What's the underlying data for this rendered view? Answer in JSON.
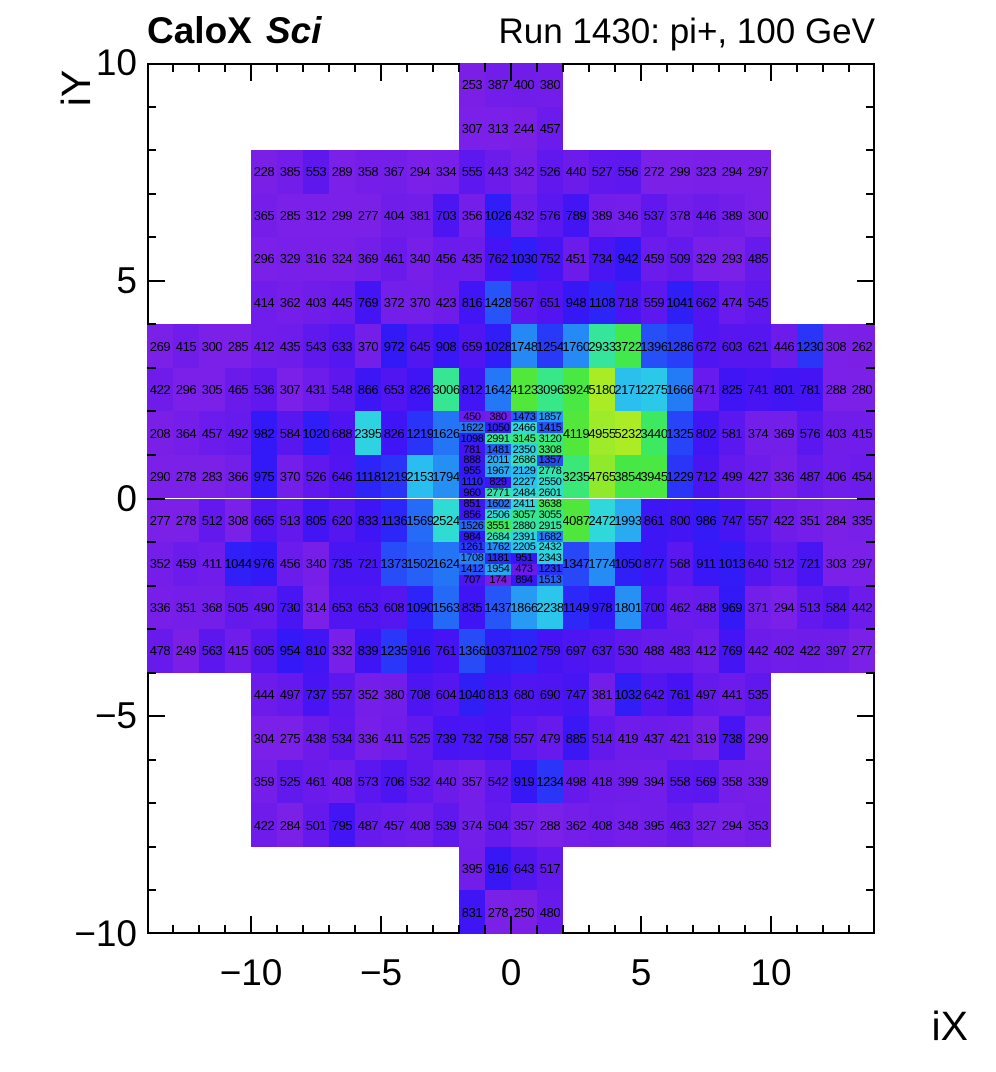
{
  "header": {
    "left_title_bold": "CaloX",
    "left_title_italic": "Sci",
    "right_title": "Run 1430: pi+, 100 GeV"
  },
  "axes": {
    "x": {
      "title": "iX",
      "tick_labels": [
        {
          "value": -10,
          "label": "−10"
        },
        {
          "value": -5,
          "label": "−5"
        },
        {
          "value": 0,
          "label": "0"
        },
        {
          "value": 5,
          "label": "5"
        },
        {
          "value": 10,
          "label": "10"
        }
      ]
    },
    "y": {
      "title": "iY",
      "tick_labels": [
        {
          "value": 10,
          "label": "10"
        },
        {
          "value": 5,
          "label": "5"
        },
        {
          "value": 0,
          "label": "0"
        },
        {
          "value": -5,
          "label": "−5"
        },
        {
          "value": -10,
          "label": "−10"
        }
      ]
    }
  },
  "chart_data": {
    "type": "heatmap",
    "title": "CaloX Sci — Run 1430: pi+, 100 GeV",
    "xlabel": "iX",
    "ylabel": "iY",
    "x_range": [
      -14,
      14
    ],
    "y_range": [
      -10,
      10
    ],
    "z_min": 174,
    "z_max": 5232,
    "grid": false,
    "legend": "none",
    "palette_stops": [
      [
        174,
        "#7A1EE4"
      ],
      [
        300,
        "#7B20E8"
      ],
      [
        450,
        "#6C1BEB"
      ],
      [
        600,
        "#5716F0"
      ],
      [
        780,
        "#4414F4"
      ],
      [
        980,
        "#3319F7"
      ],
      [
        1150,
        "#2B28F8"
      ],
      [
        1400,
        "#2750F8"
      ],
      [
        1650,
        "#2478F6"
      ],
      [
        1900,
        "#27A0F3"
      ],
      [
        2200,
        "#2BC2EE"
      ],
      [
        2500,
        "#2FDBD8"
      ],
      [
        2800,
        "#34E3AC"
      ],
      [
        3100,
        "#38E787"
      ],
      [
        3450,
        "#3DE95F"
      ],
      [
        3800,
        "#44E847"
      ],
      [
        4150,
        "#52E73A"
      ],
      [
        4500,
        "#75E831"
      ],
      [
        4850,
        "#97EA2A"
      ],
      [
        5232,
        "#ACEC25"
      ]
    ],
    "rows": [
      {
        "y": 9.5,
        "h": 1,
        "x0": -1.5,
        "dx": 1,
        "values": [
          253,
          387,
          400,
          380
        ]
      },
      {
        "y": 8.5,
        "h": 1,
        "x0": -1.5,
        "dx": 1,
        "values": [
          307,
          313,
          244,
          457
        ]
      },
      {
        "y": 7.5,
        "h": 1,
        "x0": -9.5,
        "dx": 1,
        "values": [
          228,
          385,
          553,
          289,
          358,
          367,
          294,
          334,
          555,
          443,
          342,
          526,
          440,
          527,
          556,
          272,
          299,
          323,
          294,
          297
        ]
      },
      {
        "y": 6.5,
        "h": 1,
        "x0": -9.5,
        "dx": 1,
        "values": [
          365,
          285,
          312,
          299,
          277,
          404,
          381,
          703,
          356,
          1026,
          432,
          576,
          789,
          389,
          346,
          537,
          378,
          446,
          389,
          300
        ]
      },
      {
        "y": 5.5,
        "h": 1,
        "x0": -9.5,
        "dx": 1,
        "values": [
          296,
          329,
          316,
          324,
          369,
          461,
          340,
          456,
          435,
          762,
          1030,
          752,
          451,
          734,
          942,
          459,
          509,
          329,
          293,
          485
        ]
      },
      {
        "y": 4.5,
        "h": 1,
        "x0": -9.5,
        "dx": 1,
        "values": [
          414,
          362,
          403,
          445,
          769,
          372,
          370,
          423,
          816,
          1428,
          567,
          651,
          948,
          1108,
          718,
          559,
          1041,
          662,
          474,
          545
        ]
      },
      {
        "y": 3.5,
        "h": 1,
        "x0": -13.5,
        "dx": 1,
        "values": [
          269,
          415,
          300,
          285,
          412,
          435,
          543,
          633,
          370,
          972,
          645,
          908,
          659,
          1028,
          1748,
          1254,
          1760,
          2933,
          3722,
          1396,
          1286,
          672,
          603,
          621,
          446,
          1230,
          308,
          262
        ]
      },
      {
        "y": 2.5,
        "h": 1,
        "x0": -13.5,
        "dx": 1,
        "values": [
          422,
          296,
          305,
          465,
          536,
          307,
          431,
          548,
          866,
          653,
          826,
          3006,
          812,
          1642,
          4123,
          3096,
          3924,
          5180,
          2171,
          2275,
          1666,
          471,
          825,
          741,
          801,
          781,
          288,
          280
        ]
      },
      {
        "y": 1.5,
        "h": 1,
        "x0": -13.5,
        "dx": 1,
        "values": [
          208,
          364,
          457,
          492,
          982,
          584,
          1020,
          688,
          2395,
          826,
          1219,
          1626
        ]
      },
      {
        "y": 1.5,
        "h": 1,
        "x0": 2.5,
        "dx": 1,
        "values": [
          4119,
          4955,
          5232,
          3440,
          1325,
          802,
          581,
          374,
          369,
          576,
          403,
          415
        ]
      },
      {
        "y": 0.5,
        "h": 1,
        "x0": -13.5,
        "dx": 1,
        "values": [
          290,
          278,
          283,
          366,
          975,
          370,
          526,
          646,
          1118,
          1219,
          2153,
          1794
        ]
      },
      {
        "y": 0.5,
        "h": 1,
        "x0": 2.5,
        "dx": 1,
        "values": [
          3235,
          4765,
          3854,
          3945,
          1229,
          712,
          499,
          427,
          336,
          487,
          406,
          454
        ]
      },
      {
        "y": -0.5,
        "h": 1,
        "x0": -13.5,
        "dx": 1,
        "values": [
          277,
          278,
          512,
          308,
          665,
          513,
          805,
          620,
          833,
          1136,
          1569,
          2524
        ]
      },
      {
        "y": -0.5,
        "h": 1,
        "x0": 2.5,
        "dx": 1,
        "values": [
          4087,
          2472,
          1993,
          861,
          800,
          986,
          747,
          557,
          422,
          351,
          284,
          335
        ]
      },
      {
        "y": -1.5,
        "h": 1,
        "x0": -13.5,
        "dx": 1,
        "values": [
          352,
          459,
          411,
          1044,
          976,
          456,
          340,
          735,
          721,
          1373,
          1502,
          1624
        ]
      },
      {
        "y": -1.5,
        "h": 1,
        "x0": 2.5,
        "dx": 1,
        "values": [
          1347,
          1774,
          1050,
          877,
          568,
          911,
          1013,
          640,
          512,
          721,
          303,
          297
        ]
      },
      {
        "y": 1.875,
        "h": 0.25,
        "x0": -1.5,
        "dx": 1,
        "values": [
          450,
          380,
          1473,
          1857
        ]
      },
      {
        "y": 1.625,
        "h": 0.25,
        "x0": -1.5,
        "dx": 1,
        "values": [
          1622,
          1050,
          2466,
          1415
        ]
      },
      {
        "y": 1.375,
        "h": 0.25,
        "x0": -1.5,
        "dx": 1,
        "values": [
          1098,
          2991,
          3145,
          3120
        ]
      },
      {
        "y": 1.125,
        "h": 0.25,
        "x0": -1.5,
        "dx": 1,
        "values": [
          781,
          1481,
          2350,
          3308
        ]
      },
      {
        "y": 0.875,
        "h": 0.25,
        "x0": -1.5,
        "dx": 1,
        "values": [
          888,
          2011,
          2686,
          1357
        ]
      },
      {
        "y": 0.625,
        "h": 0.25,
        "x0": -1.5,
        "dx": 1,
        "values": [
          955,
          1967,
          2129,
          2778
        ]
      },
      {
        "y": 0.375,
        "h": 0.25,
        "x0": -1.5,
        "dx": 1,
        "values": [
          1110,
          829,
          2227,
          2550
        ]
      },
      {
        "y": 0.125,
        "h": 0.25,
        "x0": -1.5,
        "dx": 1,
        "values": [
          960,
          2771,
          2484,
          2601
        ]
      },
      {
        "y": -0.125,
        "h": 0.25,
        "x0": -1.5,
        "dx": 1,
        "values": [
          851,
          1602,
          2411,
          3638
        ]
      },
      {
        "y": -0.375,
        "h": 0.25,
        "x0": -1.5,
        "dx": 1,
        "values": [
          856,
          2506,
          3057,
          3055
        ]
      },
      {
        "y": -0.625,
        "h": 0.25,
        "x0": -1.5,
        "dx": 1,
        "values": [
          1526,
          3551,
          2880,
          2915
        ]
      },
      {
        "y": -0.875,
        "h": 0.25,
        "x0": -1.5,
        "dx": 1,
        "values": [
          984,
          2684,
          2391,
          1682
        ]
      },
      {
        "y": -1.125,
        "h": 0.25,
        "x0": -1.5,
        "dx": 1,
        "values": [
          1261,
          1762,
          2205,
          2432
        ]
      },
      {
        "y": -1.375,
        "h": 0.25,
        "x0": -1.5,
        "dx": 1,
        "values": [
          1708,
          1181,
          951,
          2343
        ]
      },
      {
        "y": -1.625,
        "h": 0.25,
        "x0": -1.5,
        "dx": 1,
        "values": [
          1412,
          1954,
          473,
          1231
        ]
      },
      {
        "y": -1.875,
        "h": 0.25,
        "x0": -1.5,
        "dx": 1,
        "values": [
          707,
          174,
          894,
          1513
        ]
      },
      {
        "y": -2.5,
        "h": 1,
        "x0": -13.5,
        "dx": 1,
        "values": [
          336,
          351,
          368,
          505,
          490,
          730,
          314,
          653,
          653,
          608,
          1090,
          1563,
          835,
          1437,
          1866,
          2238,
          1149,
          978,
          1801,
          700,
          462,
          488,
          969,
          371,
          294,
          513,
          584,
          442
        ]
      },
      {
        "y": -3.5,
        "h": 1,
        "x0": -13.5,
        "dx": 1,
        "values": [
          478,
          249,
          563,
          415,
          605,
          954,
          810,
          332,
          839,
          1235,
          916,
          761,
          1366,
          1037,
          1102,
          759,
          697,
          637,
          530,
          488,
          483,
          412,
          769,
          442,
          402,
          422,
          397,
          277
        ]
      },
      {
        "y": -4.5,
        "h": 1,
        "x0": -9.5,
        "dx": 1,
        "values": [
          444,
          497,
          737,
          557,
          352,
          380,
          708,
          604,
          1040,
          813,
          680,
          690,
          747,
          381,
          1032,
          642,
          761,
          497,
          441,
          535
        ]
      },
      {
        "y": -5.5,
        "h": 1,
        "x0": -9.5,
        "dx": 1,
        "values": [
          304,
          275,
          438,
          534,
          336,
          411,
          525,
          739,
          732,
          758,
          557,
          479,
          885,
          514,
          419,
          437,
          421,
          319,
          738,
          299
        ]
      },
      {
        "y": -6.5,
        "h": 1,
        "x0": -9.5,
        "dx": 1,
        "values": [
          359,
          525,
          461,
          408,
          573,
          706,
          532,
          440,
          357,
          542,
          919,
          1234,
          498,
          418,
          399,
          394,
          558,
          569,
          358,
          339
        ]
      },
      {
        "y": -7.5,
        "h": 1,
        "x0": -9.5,
        "dx": 1,
        "values": [
          422,
          284,
          501,
          795,
          487,
          457,
          408,
          539,
          374,
          504,
          357,
          288,
          362,
          408,
          348,
          395,
          463,
          327,
          294,
          353
        ]
      },
      {
        "y": -8.5,
        "h": 1,
        "x0": -1.5,
        "dx": 1,
        "values": [
          395,
          916,
          643,
          517
        ]
      },
      {
        "y": -9.5,
        "h": 1,
        "x0": -1.5,
        "dx": 1,
        "values": [
          831,
          278,
          250,
          480
        ]
      }
    ]
  }
}
